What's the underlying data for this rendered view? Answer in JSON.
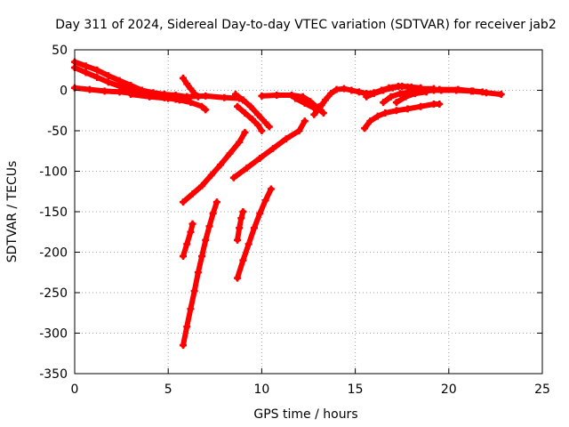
{
  "chart_data": {
    "type": "scatter",
    "title": "Day 311 of 2024, Sidereal Day-to-day VTEC variation (SDTVAR) for receiver jab2",
    "xlabel": "GPS time / hours",
    "ylabel": "SDTVAR / TECUs",
    "xlim": [
      0,
      25
    ],
    "ylim": [
      -350,
      50
    ],
    "xticks": [
      0,
      5,
      10,
      15,
      20,
      25
    ],
    "yticks": [
      50,
      0,
      -50,
      -100,
      -150,
      -200,
      -250,
      -300,
      -350
    ],
    "grid": true,
    "legend": "none",
    "color": "#ff0000",
    "series": [
      {
        "points": [
          [
            0.0,
            35
          ],
          [
            0.6,
            30
          ],
          [
            1.2,
            25
          ],
          [
            1.8,
            18
          ],
          [
            2.4,
            12
          ],
          [
            3.0,
            6
          ],
          [
            3.6,
            0
          ],
          [
            4.2,
            -3
          ],
          [
            4.8,
            -5
          ],
          [
            5.4,
            -6
          ],
          [
            6.0,
            -8
          ]
        ]
      },
      {
        "points": [
          [
            0.0,
            28
          ],
          [
            0.6,
            22
          ],
          [
            1.2,
            16
          ],
          [
            1.8,
            10
          ],
          [
            2.4,
            5
          ],
          [
            3.0,
            0
          ],
          [
            3.6,
            -4
          ],
          [
            4.2,
            -7
          ],
          [
            4.8,
            -9
          ],
          [
            5.4,
            -11
          ],
          [
            6.0,
            -12
          ]
        ]
      },
      {
        "points": [
          [
            0.0,
            3
          ],
          [
            0.8,
            1
          ],
          [
            1.6,
            -1
          ],
          [
            2.4,
            -2
          ],
          [
            3.2,
            -4
          ],
          [
            4.0,
            -6
          ],
          [
            4.8,
            -9
          ],
          [
            5.6,
            -12
          ],
          [
            6.2,
            -15
          ],
          [
            6.8,
            -20
          ],
          [
            7.0,
            -24
          ]
        ]
      },
      {
        "points": [
          [
            3.0,
            -5
          ],
          [
            4.0,
            -8
          ],
          [
            5.0,
            -10
          ],
          [
            6.0,
            -8
          ],
          [
            7.0,
            -7
          ],
          [
            8.0,
            -9
          ],
          [
            8.8,
            -10
          ],
          [
            9.0,
            -12
          ]
        ]
      },
      {
        "points": [
          [
            5.8,
            15
          ],
          [
            6.0,
            8
          ],
          [
            6.2,
            2
          ],
          [
            6.4,
            -4
          ],
          [
            6.6,
            -8
          ]
        ]
      },
      {
        "points": [
          [
            5.8,
            -138
          ],
          [
            6.3,
            -128
          ],
          [
            6.8,
            -118
          ],
          [
            7.3,
            -105
          ],
          [
            7.8,
            -92
          ],
          [
            8.3,
            -78
          ],
          [
            8.8,
            -64
          ],
          [
            9.1,
            -52
          ]
        ]
      },
      {
        "points": [
          [
            5.8,
            -205
          ],
          [
            6.0,
            -190
          ],
          [
            6.2,
            -175
          ],
          [
            6.3,
            -165
          ]
        ]
      },
      {
        "points": [
          [
            5.8,
            -315
          ],
          [
            6.0,
            -292
          ],
          [
            6.2,
            -270
          ],
          [
            6.4,
            -248
          ],
          [
            6.6,
            -225
          ],
          [
            6.8,
            -205
          ],
          [
            7.0,
            -185
          ],
          [
            7.2,
            -168
          ],
          [
            7.4,
            -152
          ],
          [
            7.6,
            -138
          ]
        ]
      },
      {
        "points": [
          [
            8.6,
            -5
          ],
          [
            9.0,
            -12
          ],
          [
            9.4,
            -20
          ],
          [
            9.8,
            -30
          ],
          [
            10.2,
            -40
          ],
          [
            10.4,
            -45
          ]
        ]
      },
      {
        "points": [
          [
            8.7,
            -20
          ],
          [
            9.1,
            -28
          ],
          [
            9.5,
            -36
          ],
          [
            9.8,
            -43
          ],
          [
            10.0,
            -50
          ]
        ]
      },
      {
        "points": [
          [
            8.5,
            -108
          ],
          [
            9.2,
            -96
          ],
          [
            9.9,
            -84
          ],
          [
            10.6,
            -72
          ],
          [
            11.3,
            -60
          ],
          [
            12.0,
            -50
          ],
          [
            12.3,
            -38
          ]
        ]
      },
      {
        "points": [
          [
            8.7,
            -185
          ],
          [
            8.8,
            -170
          ],
          [
            8.9,
            -158
          ],
          [
            9.0,
            -150
          ]
        ]
      },
      {
        "points": [
          [
            8.7,
            -232
          ],
          [
            9.0,
            -210
          ],
          [
            9.3,
            -190
          ],
          [
            9.6,
            -170
          ],
          [
            9.9,
            -152
          ],
          [
            10.2,
            -136
          ],
          [
            10.5,
            -122
          ]
        ]
      },
      {
        "points": [
          [
            10.0,
            -7
          ],
          [
            10.8,
            -6
          ],
          [
            11.6,
            -6
          ],
          [
            12.2,
            -8
          ],
          [
            12.6,
            -14
          ],
          [
            13.0,
            -22
          ],
          [
            13.3,
            -28
          ]
        ]
      },
      {
        "points": [
          [
            11.8,
            -10
          ],
          [
            12.3,
            -16
          ],
          [
            12.8,
            -22
          ],
          [
            13.2,
            -18
          ]
        ]
      },
      {
        "points": [
          [
            12.8,
            -30
          ],
          [
            13.1,
            -22
          ],
          [
            13.4,
            -12
          ],
          [
            13.7,
            -4
          ],
          [
            14.0,
            1
          ],
          [
            14.4,
            2
          ],
          [
            14.8,
            0
          ],
          [
            15.2,
            -2
          ],
          [
            15.6,
            -4
          ],
          [
            16.0,
            -3
          ],
          [
            16.4,
            0
          ],
          [
            16.8,
            3
          ],
          [
            17.3,
            5
          ],
          [
            17.8,
            4
          ],
          [
            18.5,
            2
          ],
          [
            19.2,
            2
          ]
        ]
      },
      {
        "points": [
          [
            15.6,
            -8
          ],
          [
            16.0,
            -4
          ],
          [
            16.5,
            0
          ],
          [
            17.0,
            3
          ],
          [
            17.5,
            5
          ],
          [
            18.0,
            4
          ],
          [
            18.5,
            3
          ]
        ]
      },
      {
        "points": [
          [
            15.5,
            -47
          ],
          [
            15.8,
            -38
          ],
          [
            16.2,
            -32
          ],
          [
            16.6,
            -28
          ],
          [
            17.2,
            -25
          ],
          [
            17.8,
            -23
          ],
          [
            18.5,
            -20
          ],
          [
            19.2,
            -17
          ],
          [
            19.5,
            -17
          ]
        ]
      },
      {
        "points": [
          [
            16.5,
            -15
          ],
          [
            16.9,
            -8
          ],
          [
            17.4,
            -4
          ],
          [
            18.0,
            -2
          ],
          [
            18.6,
            -1
          ],
          [
            19.2,
            0
          ]
        ]
      },
      {
        "points": [
          [
            17.2,
            -15
          ],
          [
            17.7,
            -8
          ],
          [
            18.2,
            -4
          ],
          [
            18.8,
            -2
          ]
        ]
      },
      {
        "points": [
          [
            18.8,
            0
          ],
          [
            19.6,
            0
          ],
          [
            20.4,
            0
          ],
          [
            21.2,
            -1
          ],
          [
            22.0,
            -3
          ],
          [
            22.8,
            -5
          ]
        ]
      },
      {
        "points": [
          [
            18.5,
            1
          ],
          [
            19.5,
            1
          ],
          [
            20.5,
            1
          ],
          [
            21.3,
            -1
          ],
          [
            21.8,
            -2
          ]
        ]
      }
    ]
  }
}
